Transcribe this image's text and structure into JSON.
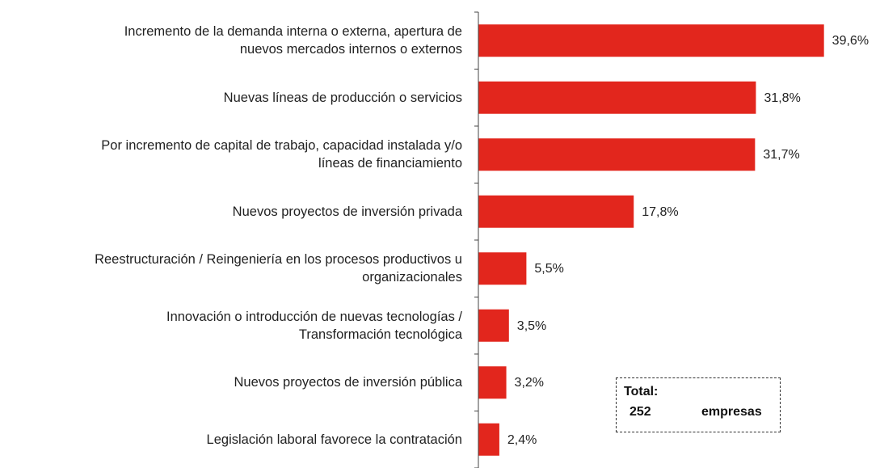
{
  "chart_data": {
    "type": "hbar",
    "categories": [
      "Incremento de la demanda interna o externa, apertura de\nnuevos mercados internos o externos",
      "Nuevas líneas de producción o servicios",
      "Por incremento de capital de trabajo, capacidad instalada y/o\nlíneas de financiamiento",
      "Nuevos proyectos de inversión privada",
      "Reestructuración / Reingeniería en los procesos productivos u\norganizacionales",
      "Innovación o introducción de nuevas tecnologías /\nTransformación tecnológica",
      "Nuevos proyectos de inversión pública",
      "Legislación laboral favorece la contratación"
    ],
    "values": [
      39.6,
      31.8,
      31.7,
      17.8,
      5.5,
      3.5,
      3.2,
      2.4
    ],
    "value_labels": [
      "39,6%",
      "31,8%",
      "31,7%",
      "17,8%",
      "5,5%",
      "3,5%",
      "3,2%",
      "2,4%"
    ],
    "color": "#e2261d",
    "xlim": [
      0,
      40
    ],
    "annotation": {
      "label": "Total:",
      "count": 252,
      "unit": "empresas"
    }
  }
}
